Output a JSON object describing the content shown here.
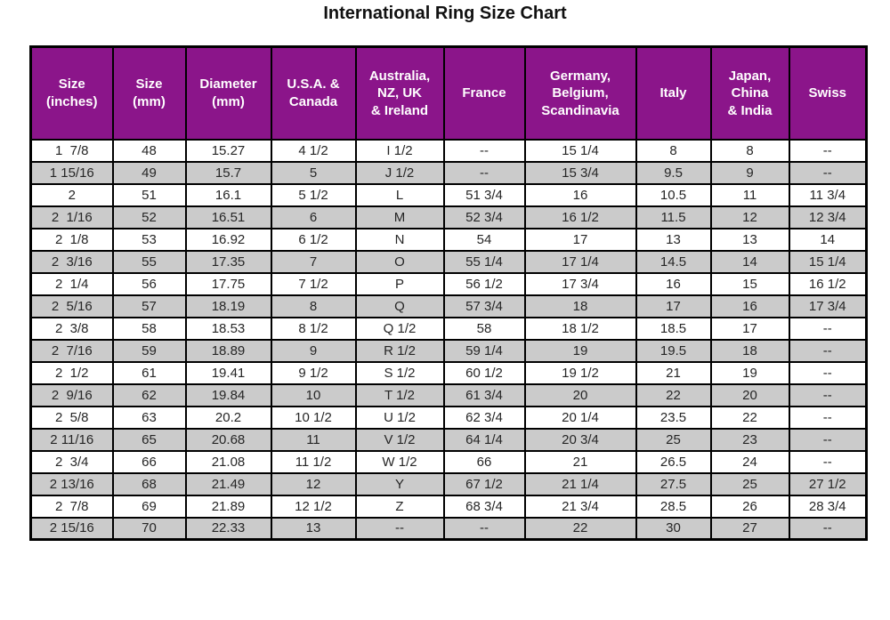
{
  "title": "International Ring Size Chart",
  "colors": {
    "header_bg": "#8b158a",
    "header_text": "#ffffff",
    "stripe_bg": "#cbcbcb",
    "row_bg": "#ffffff",
    "grid": "#000000",
    "body_text": "#262626"
  },
  "table": {
    "header_display": [
      "Size\n(inches)",
      "Size\n(mm)",
      "Diameter\n(mm)",
      "U.S.A. &\nCanada",
      "Australia,\nNZ, UK\n& Ireland",
      "France",
      "Germany,\nBelgium,\nScandinavia",
      "Italy",
      "Japan,\nChina\n& India",
      "Swiss"
    ]
  },
  "chart_data": {
    "type": "table",
    "title": "International Ring Size Chart",
    "columns": [
      "Size (inches)",
      "Size (mm)",
      "Diameter (mm)",
      "U.S.A. & Canada",
      "Australia, NZ, UK & Ireland",
      "France",
      "Germany, Belgium, Scandinavia",
      "Italy",
      "Japan, China & India",
      "Swiss"
    ],
    "rows": [
      [
        "1  7/8",
        "48",
        "15.27",
        "4 1/2",
        "I 1/2",
        "--",
        "15 1/4",
        "8",
        "8",
        "--"
      ],
      [
        "1 15/16",
        "49",
        "15.7",
        "5",
        "J 1/2",
        "--",
        "15 3/4",
        "9.5",
        "9",
        "--"
      ],
      [
        "2",
        "51",
        "16.1",
        "5 1/2",
        "L",
        "51 3/4",
        "16",
        "10.5",
        "11",
        "11 3/4"
      ],
      [
        "2  1/16",
        "52",
        "16.51",
        "6",
        "M",
        "52 3/4",
        "16 1/2",
        "11.5",
        "12",
        "12 3/4"
      ],
      [
        "2  1/8",
        "53",
        "16.92",
        "6 1/2",
        "N",
        "54",
        "17",
        "13",
        "13",
        "14"
      ],
      [
        "2  3/16",
        "55",
        "17.35",
        "7",
        "O",
        "55 1/4",
        "17 1/4",
        "14.5",
        "14",
        "15 1/4"
      ],
      [
        "2  1/4",
        "56",
        "17.75",
        "7 1/2",
        "P",
        "56 1/2",
        "17 3/4",
        "16",
        "15",
        "16 1/2"
      ],
      [
        "2  5/16",
        "57",
        "18.19",
        "8",
        "Q",
        "57 3/4",
        "18",
        "17",
        "16",
        "17 3/4"
      ],
      [
        "2  3/8",
        "58",
        "18.53",
        "8 1/2",
        "Q 1/2",
        "58",
        "18 1/2",
        "18.5",
        "17",
        "--"
      ],
      [
        "2  7/16",
        "59",
        "18.89",
        "9",
        "R 1/2",
        "59 1/4",
        "19",
        "19.5",
        "18",
        "--"
      ],
      [
        "2  1/2",
        "61",
        "19.41",
        "9 1/2",
        "S 1/2",
        "60 1/2",
        "19 1/2",
        "21",
        "19",
        "--"
      ],
      [
        "2  9/16",
        "62",
        "19.84",
        "10",
        "T 1/2",
        "61 3/4",
        "20",
        "22",
        "20",
        "--"
      ],
      [
        "2  5/8",
        "63",
        "20.2",
        "10 1/2",
        "U 1/2",
        "62 3/4",
        "20 1/4",
        "23.5",
        "22",
        "--"
      ],
      [
        "2 11/16",
        "65",
        "20.68",
        "11",
        "V 1/2",
        "64 1/4",
        "20 3/4",
        "25",
        "23",
        "--"
      ],
      [
        "2  3/4",
        "66",
        "21.08",
        "11 1/2",
        "W 1/2",
        "66",
        "21",
        "26.5",
        "24",
        "--"
      ],
      [
        "2 13/16",
        "68",
        "21.49",
        "12",
        "Y",
        "67 1/2",
        "21 1/4",
        "27.5",
        "25",
        "27 1/2"
      ],
      [
        "2  7/8",
        "69",
        "21.89",
        "12 1/2",
        "Z",
        "68 3/4",
        "21 3/4",
        "28.5",
        "26",
        "28 3/4"
      ],
      [
        "2 15/16",
        "70",
        "22.33",
        "13",
        "--",
        "--",
        "22",
        "30",
        "27",
        "--"
      ]
    ]
  }
}
